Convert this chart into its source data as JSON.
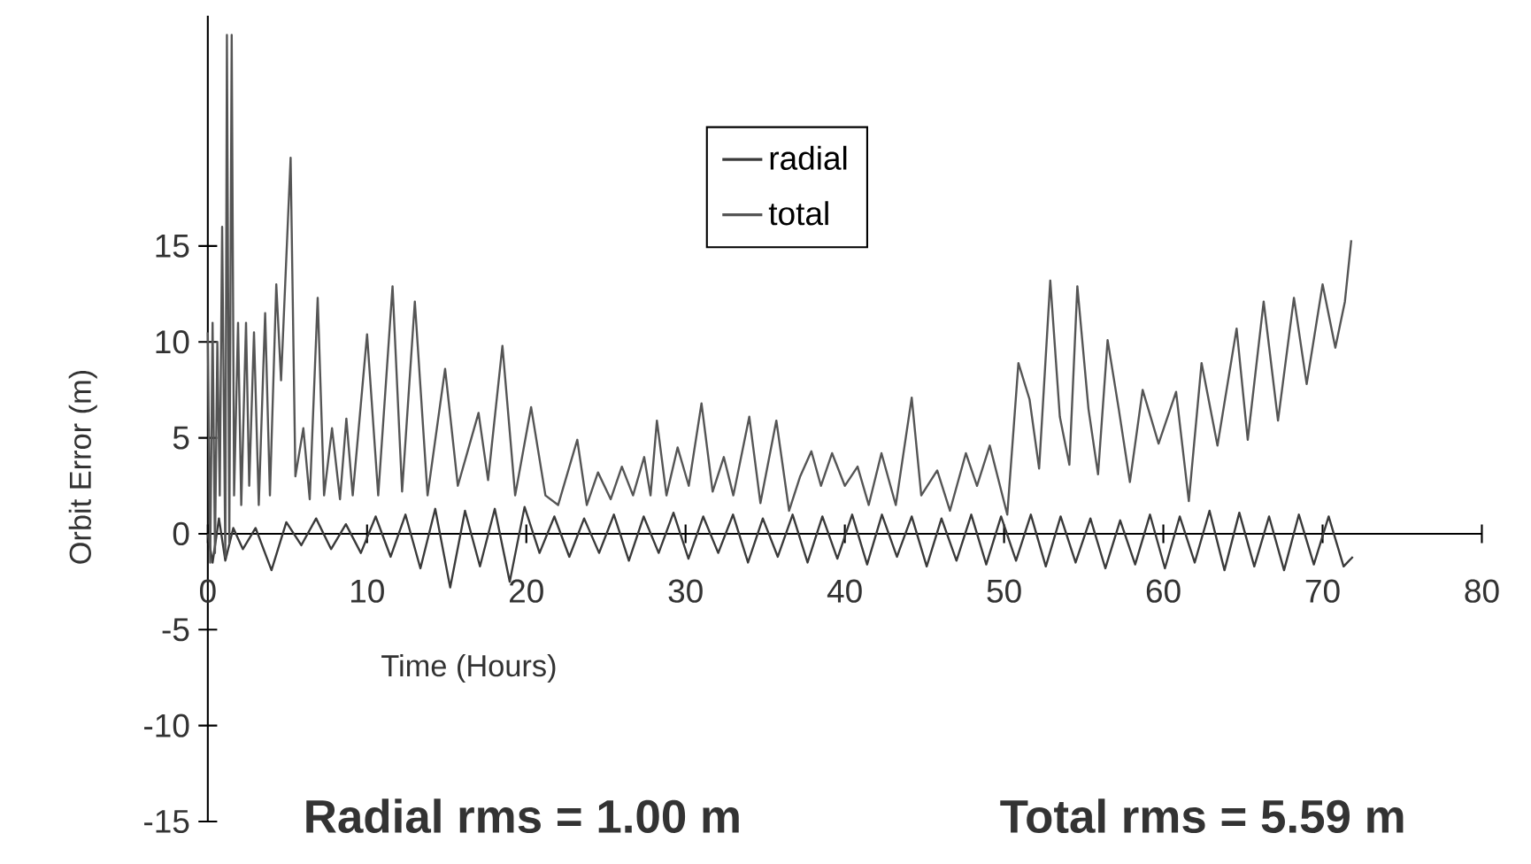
{
  "chart_data": {
    "type": "line",
    "xlabel": "Time (Hours)",
    "ylabel": "Orbit Error (m)",
    "annotations": [
      "Radial rms = 1.00 m",
      "Total rms = 5.59 m"
    ],
    "xlim": [
      0,
      80
    ],
    "ylim": [
      -15,
      27
    ],
    "xticks": [
      0,
      10,
      20,
      30,
      40,
      50,
      60,
      70,
      80
    ],
    "yticks": [
      -15,
      -10,
      -5,
      0,
      5,
      10,
      15
    ],
    "legend": "top",
    "grid": false,
    "marker": "none",
    "line_style": "solid",
    "series": [
      {
        "name": "radial",
        "color": "#3a3a3a",
        "x": [
          0,
          0.3,
          0.7,
          1.1,
          1.6,
          2.2,
          3.0,
          4.0,
          4.93,
          5.87,
          6.8,
          7.74,
          8.67,
          9.61,
          10.54,
          11.48,
          12.41,
          13.35,
          14.28,
          15.22,
          16.15,
          17.09,
          18.02,
          18.96,
          19.89,
          20.83,
          21.76,
          22.7,
          23.63,
          24.57,
          25.5,
          26.44,
          27.37,
          28.31,
          29.24,
          30.18,
          31.11,
          32.05,
          32.98,
          33.92,
          34.85,
          35.79,
          36.72,
          37.66,
          38.59,
          39.53,
          40.46,
          41.4,
          42.33,
          43.27,
          44.2,
          45.14,
          46.07,
          47.01,
          47.94,
          48.88,
          49.81,
          50.75,
          51.68,
          52.62,
          53.55,
          54.49,
          55.42,
          56.36,
          57.29,
          58.23,
          59.16,
          60.1,
          61.03,
          61.97,
          62.9,
          63.84,
          64.77,
          65.71,
          66.64,
          67.58,
          68.51,
          69.45,
          70.38,
          71.32,
          71.9
        ],
        "values": [
          0,
          -1.5,
          0.8,
          -1.4,
          0.3,
          -0.8,
          0.3,
          -1.9,
          0.6,
          -0.6,
          0.8,
          -0.8,
          0.5,
          -1.0,
          0.9,
          -1.2,
          1.0,
          -1.8,
          1.3,
          -2.8,
          1.2,
          -1.7,
          1.3,
          -2.5,
          1.4,
          -1.0,
          0.9,
          -1.2,
          0.8,
          -1.0,
          1.0,
          -1.4,
          0.9,
          -1.0,
          1.1,
          -1.3,
          0.9,
          -1.0,
          1.0,
          -1.5,
          0.8,
          -1.2,
          1.0,
          -1.5,
          0.9,
          -1.3,
          1.0,
          -1.6,
          1.0,
          -1.2,
          0.9,
          -1.7,
          0.8,
          -1.4,
          1.0,
          -1.6,
          0.9,
          -1.4,
          1.0,
          -1.7,
          0.9,
          -1.5,
          0.8,
          -1.8,
          0.7,
          -1.6,
          1.0,
          -1.8,
          0.9,
          -1.5,
          1.2,
          -1.9,
          1.1,
          -1.7,
          0.9,
          -1.9,
          1.0,
          -1.6,
          0.9,
          -1.7,
          -1.2
        ]
      },
      {
        "name": "total",
        "color": "#555555",
        "x": [
          0,
          0.15,
          0.3,
          0.45,
          0.6,
          0.75,
          0.9,
          1.1,
          1.2,
          1.35,
          1.5,
          1.65,
          1.9,
          2.1,
          2.4,
          2.6,
          2.9,
          3.2,
          3.6,
          3.9,
          4.3,
          4.6,
          5.2,
          5.5,
          6.0,
          6.4,
          6.9,
          7.3,
          7.8,
          8.3,
          8.7,
          9.1,
          10.0,
          10.7,
          11.6,
          12.2,
          13.0,
          13.8,
          14.9,
          15.7,
          17.0,
          17.6,
          18.5,
          19.3,
          20.3,
          21.2,
          22.0,
          23.2,
          23.8,
          24.5,
          25.3,
          26.0,
          26.7,
          27.4,
          27.8,
          28.2,
          28.8,
          29.5,
          30.2,
          31.0,
          31.7,
          32.4,
          33.0,
          34.0,
          34.7,
          35.7,
          36.5,
          37.2,
          37.9,
          38.5,
          39.2,
          40.0,
          40.8,
          41.5,
          42.3,
          43.2,
          44.2,
          44.8,
          45.8,
          46.6,
          47.6,
          48.3,
          49.1,
          50.2,
          50.9,
          51.6,
          52.2,
          52.9,
          53.5,
          54.1,
          54.6,
          55.3,
          55.9,
          56.5,
          57.2,
          57.9,
          58.7,
          59.7,
          60.8,
          61.6,
          62.4,
          63.4,
          64.6,
          65.3,
          66.3,
          67.2,
          68.2,
          69.0,
          70.0,
          70.8,
          71.4,
          71.8
        ],
        "values": [
          10.5,
          -1.5,
          11,
          -1.0,
          10,
          2,
          16,
          -1.2,
          26,
          -0.5,
          26,
          2,
          11,
          1.5,
          11,
          2.5,
          10.5,
          1.5,
          11.5,
          2.0,
          13,
          8,
          19.6,
          3,
          5.5,
          1.8,
          12.3,
          2.0,
          5.5,
          1.8,
          6,
          2,
          10.4,
          2.0,
          12.9,
          2.2,
          12.1,
          2.0,
          8.6,
          2.5,
          6.3,
          2.8,
          9.8,
          2.0,
          6.6,
          2.0,
          1.5,
          4.9,
          1.5,
          3.2,
          1.8,
          3.5,
          2.0,
          4.0,
          2.0,
          5.9,
          2.0,
          4.5,
          2.5,
          6.8,
          2.2,
          4.0,
          2.0,
          6.1,
          1.6,
          5.9,
          1.2,
          3.0,
          4.3,
          2.5,
          4.2,
          2.5,
          3.5,
          1.5,
          4.2,
          1.5,
          7.1,
          2.0,
          3.3,
          1.2,
          4.2,
          2.5,
          4.6,
          1.0,
          8.9,
          7.0,
          3.4,
          13.2,
          6.1,
          3.6,
          12.9,
          6.5,
          3.1,
          10.1,
          6.5,
          2.7,
          7.5,
          4.7,
          7.4,
          1.7,
          8.9,
          4.6,
          10.7,
          4.9,
          12.1,
          5.9,
          12.3,
          7.8,
          13.0,
          9.7,
          12.1,
          15.3
        ]
      }
    ]
  }
}
